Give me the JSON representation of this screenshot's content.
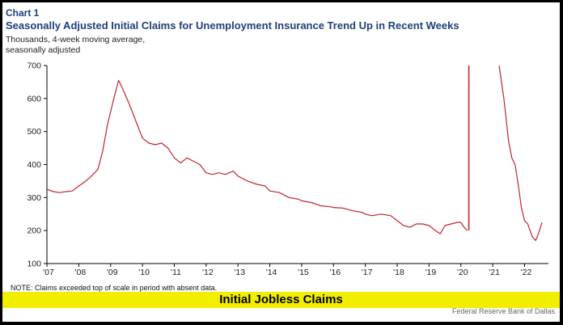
{
  "header": {
    "chart_number": "Chart 1",
    "title": "Seasonally Adjusted Initial Claims for Unemployment Insurance Trend Up in Recent Weeks",
    "subtitle": "Thousands, 4-week moving average, seasonally adjusted"
  },
  "note": "NOTE: Claims exceeded top of scale in period with absent data.",
  "banner": "Initial Jobless Claims",
  "source": "Federal Reserve Bank of Dallas",
  "chart_data": {
    "type": "line",
    "title": "Seasonally Adjusted Initial Claims for Unemployment Insurance Trend Up in Recent Weeks",
    "ylabel": "Thousands, 4-week moving average, seasonally adjusted",
    "xlabel": "",
    "ylim": [
      100,
      700
    ],
    "xlim": [
      2007,
      2022.75
    ],
    "yticks": [
      100,
      200,
      300,
      400,
      500,
      600,
      700
    ],
    "xticks": [
      "'07",
      "'08",
      "'09",
      "'10",
      "'11",
      "'12",
      "'13",
      "'14",
      "'15",
      "'16",
      "'17",
      "'18",
      "'19",
      "'20",
      "'21",
      "'22"
    ],
    "grid": false,
    "line_color": "#c0262d",
    "series": [
      {
        "points": [
          [
            2007.0,
            325
          ],
          [
            2007.2,
            318
          ],
          [
            2007.4,
            315
          ],
          [
            2007.6,
            318
          ],
          [
            2007.8,
            320
          ],
          [
            2008.0,
            335
          ],
          [
            2008.2,
            348
          ],
          [
            2008.4,
            365
          ],
          [
            2008.6,
            385
          ],
          [
            2008.75,
            440
          ],
          [
            2008.9,
            520
          ],
          [
            2009.1,
            600
          ],
          [
            2009.25,
            655
          ],
          [
            2009.4,
            625
          ],
          [
            2009.6,
            580
          ],
          [
            2009.8,
            530
          ],
          [
            2010.0,
            480
          ],
          [
            2010.2,
            465
          ],
          [
            2010.4,
            460
          ],
          [
            2010.6,
            465
          ],
          [
            2010.8,
            450
          ],
          [
            2011.0,
            420
          ],
          [
            2011.2,
            405
          ],
          [
            2011.4,
            420
          ],
          [
            2011.6,
            410
          ],
          [
            2011.8,
            400
          ],
          [
            2012.0,
            375
          ],
          [
            2012.2,
            370
          ],
          [
            2012.4,
            375
          ],
          [
            2012.6,
            370
          ],
          [
            2012.85,
            380
          ],
          [
            2013.0,
            365
          ],
          [
            2013.3,
            350
          ],
          [
            2013.6,
            340
          ],
          [
            2013.85,
            335
          ],
          [
            2014.0,
            320
          ],
          [
            2014.3,
            315
          ],
          [
            2014.6,
            300
          ],
          [
            2014.9,
            295
          ],
          [
            2015.0,
            290
          ],
          [
            2015.3,
            285
          ],
          [
            2015.6,
            275
          ],
          [
            2015.9,
            272
          ],
          [
            2016.0,
            270
          ],
          [
            2016.3,
            268
          ],
          [
            2016.6,
            260
          ],
          [
            2016.9,
            255
          ],
          [
            2017.0,
            250
          ],
          [
            2017.2,
            245
          ],
          [
            2017.5,
            250
          ],
          [
            2017.8,
            245
          ],
          [
            2018.0,
            230
          ],
          [
            2018.2,
            215
          ],
          [
            2018.4,
            210
          ],
          [
            2018.6,
            220
          ],
          [
            2018.8,
            220
          ],
          [
            2019.0,
            215
          ],
          [
            2019.2,
            200
          ],
          [
            2019.35,
            190
          ],
          [
            2019.5,
            215
          ],
          [
            2019.7,
            220
          ],
          [
            2019.9,
            225
          ],
          [
            2020.0,
            225
          ],
          [
            2020.1,
            210
          ],
          [
            2020.2,
            200
          ]
        ]
      },
      {
        "points": [
          [
            2021.2,
            700
          ],
          [
            2021.35,
            600
          ],
          [
            2021.5,
            470
          ],
          [
            2021.6,
            420
          ],
          [
            2021.7,
            400
          ],
          [
            2021.8,
            340
          ],
          [
            2021.9,
            270
          ],
          [
            2022.0,
            230
          ],
          [
            2022.1,
            220
          ],
          [
            2022.25,
            180
          ],
          [
            2022.35,
            170
          ],
          [
            2022.45,
            195
          ],
          [
            2022.55,
            225
          ]
        ]
      }
    ],
    "spike": {
      "x": 2020.25,
      "from": 200,
      "to": 700
    }
  }
}
